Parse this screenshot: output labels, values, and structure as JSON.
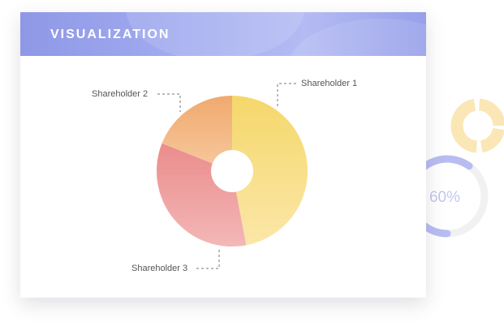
{
  "header": {
    "title": "VISUALIZATION"
  },
  "chart_data": {
    "type": "pie",
    "categories": [
      "Shareholder 1",
      "Shareholder 2",
      "Shareholder 3"
    ],
    "values": [
      47,
      19,
      34
    ],
    "donut": true,
    "colors": [
      [
        "#f5d76b",
        "#fbe7a8"
      ],
      [
        "#f0a96e",
        "#f7c99f"
      ],
      [
        "#ea8c8c",
        "#f4b7b7"
      ]
    ]
  },
  "widgets": {
    "progress_ring": {
      "value": 60,
      "label": "60%",
      "color": "#b8bdf1"
    },
    "mini_donut_color": "#fae7b5"
  }
}
